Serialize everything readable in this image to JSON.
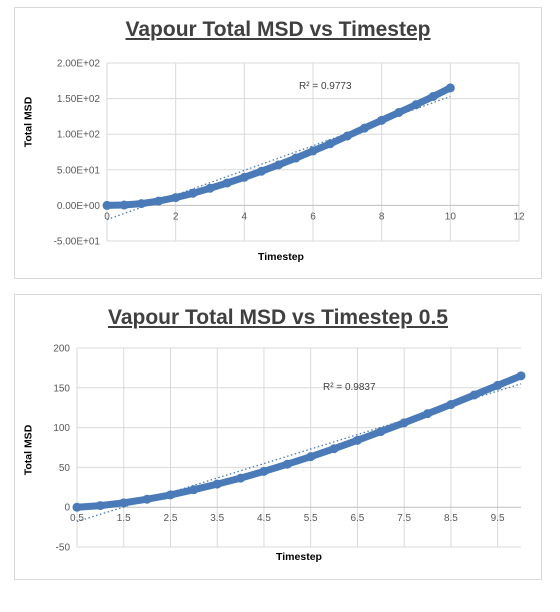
{
  "chart_data": [
    {
      "type": "scatter",
      "title": "Vapour Total MSD vs Timestep",
      "xlabel": "Timestep",
      "ylabel": "Total MSD",
      "xlim": [
        0,
        12
      ],
      "ylim": [
        -50,
        200
      ],
      "x_ticks": [
        "0",
        "2",
        "4",
        "6",
        "8",
        "10",
        "12"
      ],
      "y_ticks": [
        "-5.00E+01",
        "0.00E+00",
        "5.00E+01",
        "1.00E+02",
        "1.50E+02",
        "2.00E+02"
      ],
      "grid": true,
      "annotation": "R² = 0.9773",
      "series_color": "#4a7ab7",
      "trendline_color": "#4a7ab7",
      "series": [
        {
          "x": [
            0,
            0.5,
            1,
            1.5,
            2,
            2.5,
            3,
            3.5,
            4,
            4.5,
            5,
            5.5,
            6,
            6.5,
            7,
            7.5,
            8,
            8.5,
            9,
            9.5,
            10
          ],
          "y": [
            0,
            0.5,
            2.5,
            6,
            11,
            17,
            24,
            31.5,
            39.5,
            48,
            57,
            66.5,
            76.5,
            86.5,
            97.5,
            108.5,
            119.5,
            130.5,
            141.5,
            153,
            165
          ]
        }
      ],
      "trendline": {
        "x": [
          0,
          10
        ],
        "y": [
          -20,
          153
        ]
      }
    },
    {
      "type": "scatter",
      "title": "Vapour Total MSD vs Timestep 0.5",
      "xlabel": "Timestep",
      "ylabel": "Total MSD",
      "xlim": [
        0.5,
        10
      ],
      "ylim": [
        -50,
        200
      ],
      "x_ticks": [
        "0.5",
        "1.5",
        "2.5",
        "3.5",
        "4.5",
        "5.5",
        "6.5",
        "7.5",
        "8.5",
        "9.5"
      ],
      "y_ticks": [
        "-50",
        "0",
        "50",
        "100",
        "150",
        "200"
      ],
      "grid": true,
      "annotation": "R² = 0.9837",
      "series_color": "#4a7ab7",
      "trendline_color": "#4a7ab7",
      "series": [
        {
          "x": [
            0.5,
            1,
            1.5,
            2,
            2.5,
            3,
            3.5,
            4,
            4.5,
            5,
            5.5,
            6,
            6.5,
            7,
            7.5,
            8,
            8.5,
            9,
            9.5,
            10
          ],
          "y": [
            0,
            2,
            5.5,
            10,
            15.5,
            22,
            29,
            36.5,
            45,
            54,
            63.5,
            73.5,
            84,
            95,
            106,
            117.5,
            129,
            141,
            153,
            165
          ]
        }
      ],
      "trendline": {
        "x": [
          0.5,
          10
        ],
        "y": [
          -18,
          155
        ]
      }
    }
  ]
}
